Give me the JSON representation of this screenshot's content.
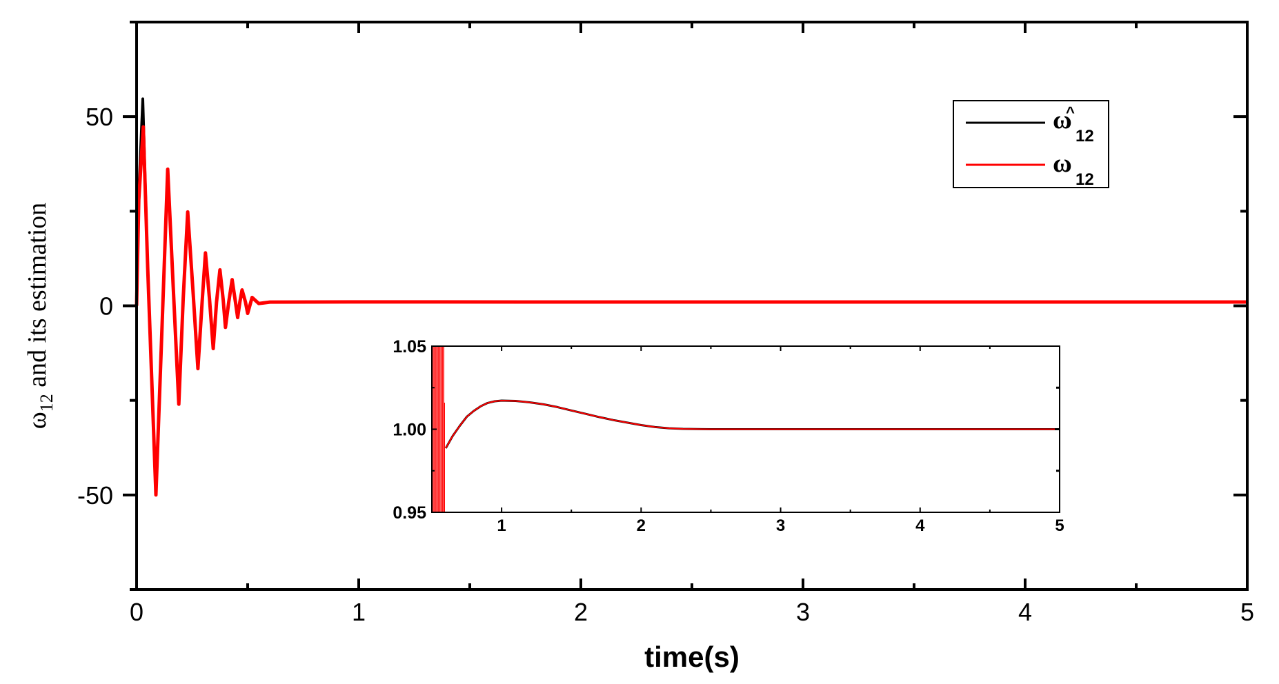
{
  "chart_data": {
    "type": "line",
    "title": "",
    "xlabel": "time(s)",
    "ylabel": {
      "symbol": "ω",
      "subscript": "12",
      "text": " and its estimation"
    },
    "xlim": [
      0,
      5
    ],
    "ylim": [
      -75,
      75
    ],
    "xticks": [
      0,
      1,
      2,
      3,
      4,
      5
    ],
    "xtick_labels": [
      "0",
      "1",
      "2",
      "3",
      "4",
      "5"
    ],
    "x_minor_ticks": [
      0.5,
      1.5,
      2.5,
      3.5,
      4.5
    ],
    "yticks": [
      -50,
      0,
      50
    ],
    "ytick_labels": [
      "-50",
      "0",
      "50"
    ],
    "y_minor_ticks": [
      -25,
      25
    ],
    "grid": false,
    "legend": {
      "position": "upper right",
      "entries": [
        {
          "symbol": "ω",
          "subscript": "12",
          "hat": "^",
          "color": "#000000",
          "name": "omega_12_hat (estimation)"
        },
        {
          "symbol": "ω",
          "subscript": "12",
          "hat": "",
          "color": "#ff0000",
          "name": "omega_12"
        }
      ]
    },
    "series": [
      {
        "name": "ω̂12 (estimation)",
        "color": "#000000",
        "x": [
          0,
          0.01,
          0.028,
          0.05,
          0.087,
          0.115,
          0.14,
          0.165,
          0.19,
          0.21,
          0.23,
          0.255,
          0.276,
          0.295,
          0.31,
          0.328,
          0.345,
          0.36,
          0.375,
          0.39,
          0.4,
          0.415,
          0.43,
          0.445,
          0.455,
          0.465,
          0.475,
          0.49,
          0.5,
          0.52,
          0.55,
          0.6,
          1.0,
          2.0,
          3.0,
          4.0,
          5.0
        ],
        "y": [
          0,
          30,
          54.7,
          10,
          -50,
          -5,
          36.1,
          5,
          -26,
          2,
          24.8,
          3,
          -16.6,
          1,
          14,
          2,
          -11.3,
          1,
          9.5,
          1.5,
          -5.7,
          1,
          6.9,
          1,
          -3.1,
          1,
          4.2,
          1,
          -2,
          2.2,
          0.6,
          0.989,
          1.017,
          1.001,
          1.0,
          1.0,
          1.0
        ]
      },
      {
        "name": "ω12",
        "color": "#ff0000",
        "x": [
          0,
          0.01,
          0.03,
          0.05,
          0.087,
          0.115,
          0.14,
          0.165,
          0.19,
          0.21,
          0.23,
          0.255,
          0.276,
          0.295,
          0.31,
          0.328,
          0.345,
          0.36,
          0.375,
          0.39,
          0.4,
          0.415,
          0.43,
          0.445,
          0.455,
          0.465,
          0.475,
          0.49,
          0.5,
          0.52,
          0.55,
          0.6,
          1.0,
          2.0,
          3.0,
          4.0,
          5.0
        ],
        "y": [
          0,
          28,
          47.3,
          10,
          -50,
          -5,
          36.1,
          5,
          -26,
          2,
          24.8,
          3,
          -16.6,
          1,
          14,
          2,
          -11.3,
          1,
          9.5,
          1.5,
          -5.7,
          1,
          6.9,
          1,
          -3.1,
          1,
          4.2,
          1,
          -2,
          2.2,
          0.6,
          0.989,
          1.017,
          1.001,
          1.0,
          1.0,
          1.0
        ]
      }
    ],
    "inset": {
      "type": "line",
      "xlim": [
        0.5,
        5
      ],
      "ylim": [
        0.95,
        1.05
      ],
      "xticks": [
        1,
        2,
        3,
        4,
        5
      ],
      "xtick_labels": [
        "1",
        "2",
        "3",
        "4",
        "5"
      ],
      "x_minor_ticks": [
        1.5,
        2.5,
        3.5,
        4.5
      ],
      "yticks": [
        0.95,
        1.0,
        1.05
      ],
      "ytick_labels": [
        "0.95",
        "1.00",
        "1.05"
      ],
      "y_minor_ticks": [
        0.975,
        1.025
      ],
      "series": [
        {
          "name": "ω̂12 (estimation)",
          "color": "#000000",
          "x": [
            0.6,
            0.65,
            0.7,
            0.75,
            0.8,
            0.85,
            0.9,
            0.95,
            1.0,
            1.1,
            1.2,
            1.3,
            1.4,
            1.5,
            1.6,
            1.7,
            1.8,
            1.9,
            2.0,
            2.1,
            2.2,
            2.3,
            2.5,
            3.0,
            3.5,
            4.0,
            4.5,
            5.0
          ],
          "y": [
            0.9886,
            0.996,
            1.002,
            1.0075,
            1.011,
            1.0138,
            1.0158,
            1.0168,
            1.0172,
            1.017,
            1.0162,
            1.015,
            1.0133,
            1.0113,
            1.0093,
            1.0073,
            1.0055,
            1.004,
            1.0025,
            1.0013,
            1.0006,
            1.0002,
            1.0,
            1.0,
            1.0,
            1.0,
            1.0,
            1.0
          ]
        },
        {
          "name": "ω12",
          "color": "#ff0000",
          "x": [
            0.6,
            0.65,
            0.7,
            0.75,
            0.8,
            0.85,
            0.9,
            0.95,
            1.0,
            1.1,
            1.2,
            1.3,
            1.4,
            1.5,
            1.6,
            1.7,
            1.8,
            1.9,
            2.0,
            2.1,
            2.2,
            2.3,
            2.5,
            3.0,
            3.5,
            4.0,
            4.5,
            5.0
          ],
          "y": [
            0.9886,
            0.996,
            1.002,
            1.0075,
            1.011,
            1.0138,
            1.0158,
            1.0168,
            1.0172,
            1.017,
            1.0162,
            1.015,
            1.0133,
            1.0113,
            1.0093,
            1.0073,
            1.0055,
            1.004,
            1.0025,
            1.0013,
            1.0006,
            1.0002,
            1.0,
            1.0,
            1.0,
            1.0,
            1.0,
            1.0
          ]
        }
      ],
      "transient_spikes_x": [
        0.505,
        0.515,
        0.525,
        0.535,
        0.545,
        0.555,
        0.565,
        0.575,
        0.585
      ]
    }
  }
}
